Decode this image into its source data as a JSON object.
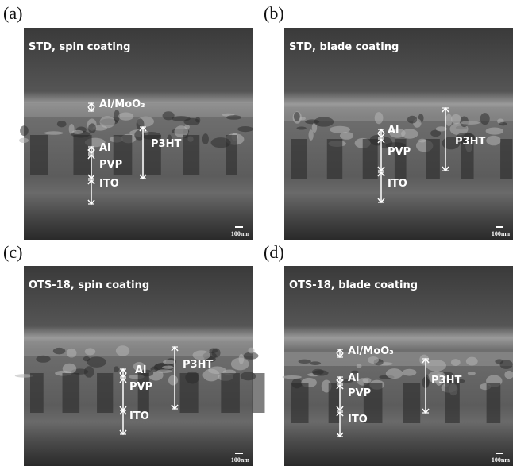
{
  "panels": [
    {
      "letter": "(a)",
      "title": "STD, spin coating",
      "layers": [
        "Al/MoO₃",
        "P3HT",
        "Al",
        "PVP",
        "ITO"
      ],
      "scale": "100nm"
    },
    {
      "letter": "(b)",
      "title": "STD, blade coating",
      "layers": [
        "Al",
        "PVP",
        "P3HT",
        "ITO"
      ],
      "scale": "100nm"
    },
    {
      "letter": "(c)",
      "title": "OTS-18, spin coating",
      "layers": [
        "Al",
        "PVP",
        "P3HT",
        "ITO"
      ],
      "scale": "100nm"
    },
    {
      "letter": "(d)",
      "title": "OTS-18, blade coating",
      "layers": [
        "Al/MoO₃",
        "Al",
        "PVP",
        "P3HT",
        "ITO"
      ],
      "scale": "100nm"
    }
  ]
}
